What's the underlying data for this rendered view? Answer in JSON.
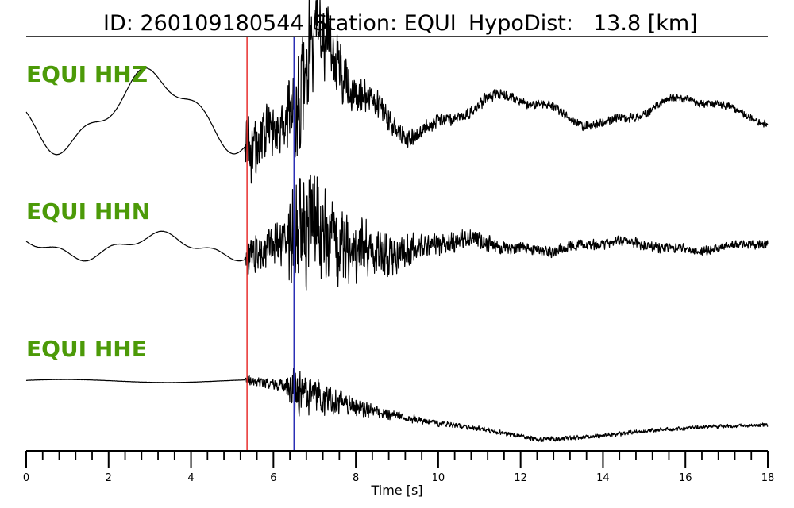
{
  "title": {
    "id_text": "ID: 260109180544",
    "station_text": "Station: EQUI",
    "dist_text": "HypoDist:",
    "dist_value": "13.8 [km]"
  },
  "chart_data": {
    "type": "line",
    "title": "ID: 260109180544   Station: EQUI   HypoDist:   13.8 [km]",
    "xlabel": "Time [s]",
    "xlim": [
      0,
      18
    ],
    "major_ticks": [
      0,
      2,
      4,
      6,
      8,
      10,
      12,
      14,
      16,
      18
    ],
    "minor_tick_step": 0.4,
    "label_color": "#4c9a08",
    "trace_color": "#000000",
    "p_pick": {
      "time": 5.36,
      "color": "#e8302e"
    },
    "s_pick": {
      "time": 6.5,
      "color": "#2a2fb5"
    },
    "series": [
      {
        "name": "EQUI HHZ",
        "envelope": [
          [
            0,
            0.5
          ],
          [
            5.3,
            0.5
          ],
          [
            5.5,
            0.75
          ],
          [
            6.2,
            0.7
          ],
          [
            6.6,
            0.9
          ],
          [
            7.0,
            1.0
          ],
          [
            7.5,
            0.75
          ],
          [
            8.0,
            0.5
          ],
          [
            9.0,
            0.35
          ],
          [
            10.0,
            0.25
          ],
          [
            12.0,
            0.2
          ],
          [
            18,
            0.15
          ]
        ],
        "waves": [
          {
            "amp": -1.1,
            "freq": 0.23,
            "phase": 0.3
          },
          {
            "amp": 0.3,
            "freq": 0.7,
            "phase": 1.7
          }
        ],
        "burst": [
          [
            0,
            0
          ],
          [
            5.3,
            0
          ],
          [
            5.35,
            0.28
          ],
          [
            6.3,
            0.22
          ],
          [
            6.55,
            0.55
          ],
          [
            7.1,
            0.4
          ],
          [
            7.5,
            0.25
          ],
          [
            8.5,
            0.12
          ],
          [
            10,
            0.06
          ],
          [
            12,
            0.04
          ],
          [
            18,
            0.03
          ]
        ]
      },
      {
        "name": "EQUI HHN",
        "envelope": [
          [
            0,
            0.6
          ],
          [
            5.3,
            0.6
          ],
          [
            5.5,
            0.8
          ],
          [
            6.2,
            0.7
          ],
          [
            6.6,
            1.0
          ],
          [
            7.2,
            0.8
          ],
          [
            8.0,
            0.55
          ],
          [
            9.5,
            0.35
          ],
          [
            12,
            0.25
          ],
          [
            18,
            0.2
          ]
        ],
        "waves": [
          {
            "amp": 0.3,
            "freq": 0.27,
            "phase": 2.4
          },
          {
            "amp": -0.12,
            "freq": 0.8,
            "phase": 0.6
          }
        ],
        "burst": [
          [
            0,
            0
          ],
          [
            5.3,
            0
          ],
          [
            5.35,
            0.2
          ],
          [
            6.3,
            0.18
          ],
          [
            6.55,
            0.6
          ],
          [
            7.2,
            0.42
          ],
          [
            8.0,
            0.28
          ],
          [
            9.5,
            0.12
          ],
          [
            12,
            0.05
          ],
          [
            18,
            0.04
          ]
        ]
      },
      {
        "name": "EQUI HHE",
        "envelope": [
          [
            0,
            0.5
          ],
          [
            5.3,
            0.5
          ],
          [
            6.0,
            0.5
          ],
          [
            8.0,
            0.4
          ],
          [
            18,
            0.3
          ]
        ],
        "waves": [
          {
            "amp": 0.05,
            "freq": 0.2,
            "phase": 0.4
          }
        ],
        "drift": [
          [
            0,
            0
          ],
          [
            5.3,
            0
          ],
          [
            6.2,
            -0.12
          ],
          [
            8.0,
            -0.42
          ],
          [
            10.0,
            -0.72
          ],
          [
            12.5,
            -0.98
          ],
          [
            15.0,
            -0.85
          ],
          [
            18.0,
            -0.72
          ]
        ],
        "burst": [
          [
            0,
            0
          ],
          [
            5.3,
            0
          ],
          [
            5.35,
            0.04
          ],
          [
            6.3,
            0.06
          ],
          [
            6.55,
            0.22
          ],
          [
            7.2,
            0.14
          ],
          [
            8.5,
            0.05
          ],
          [
            10,
            0.025
          ],
          [
            18,
            0.015
          ]
        ]
      }
    ]
  }
}
